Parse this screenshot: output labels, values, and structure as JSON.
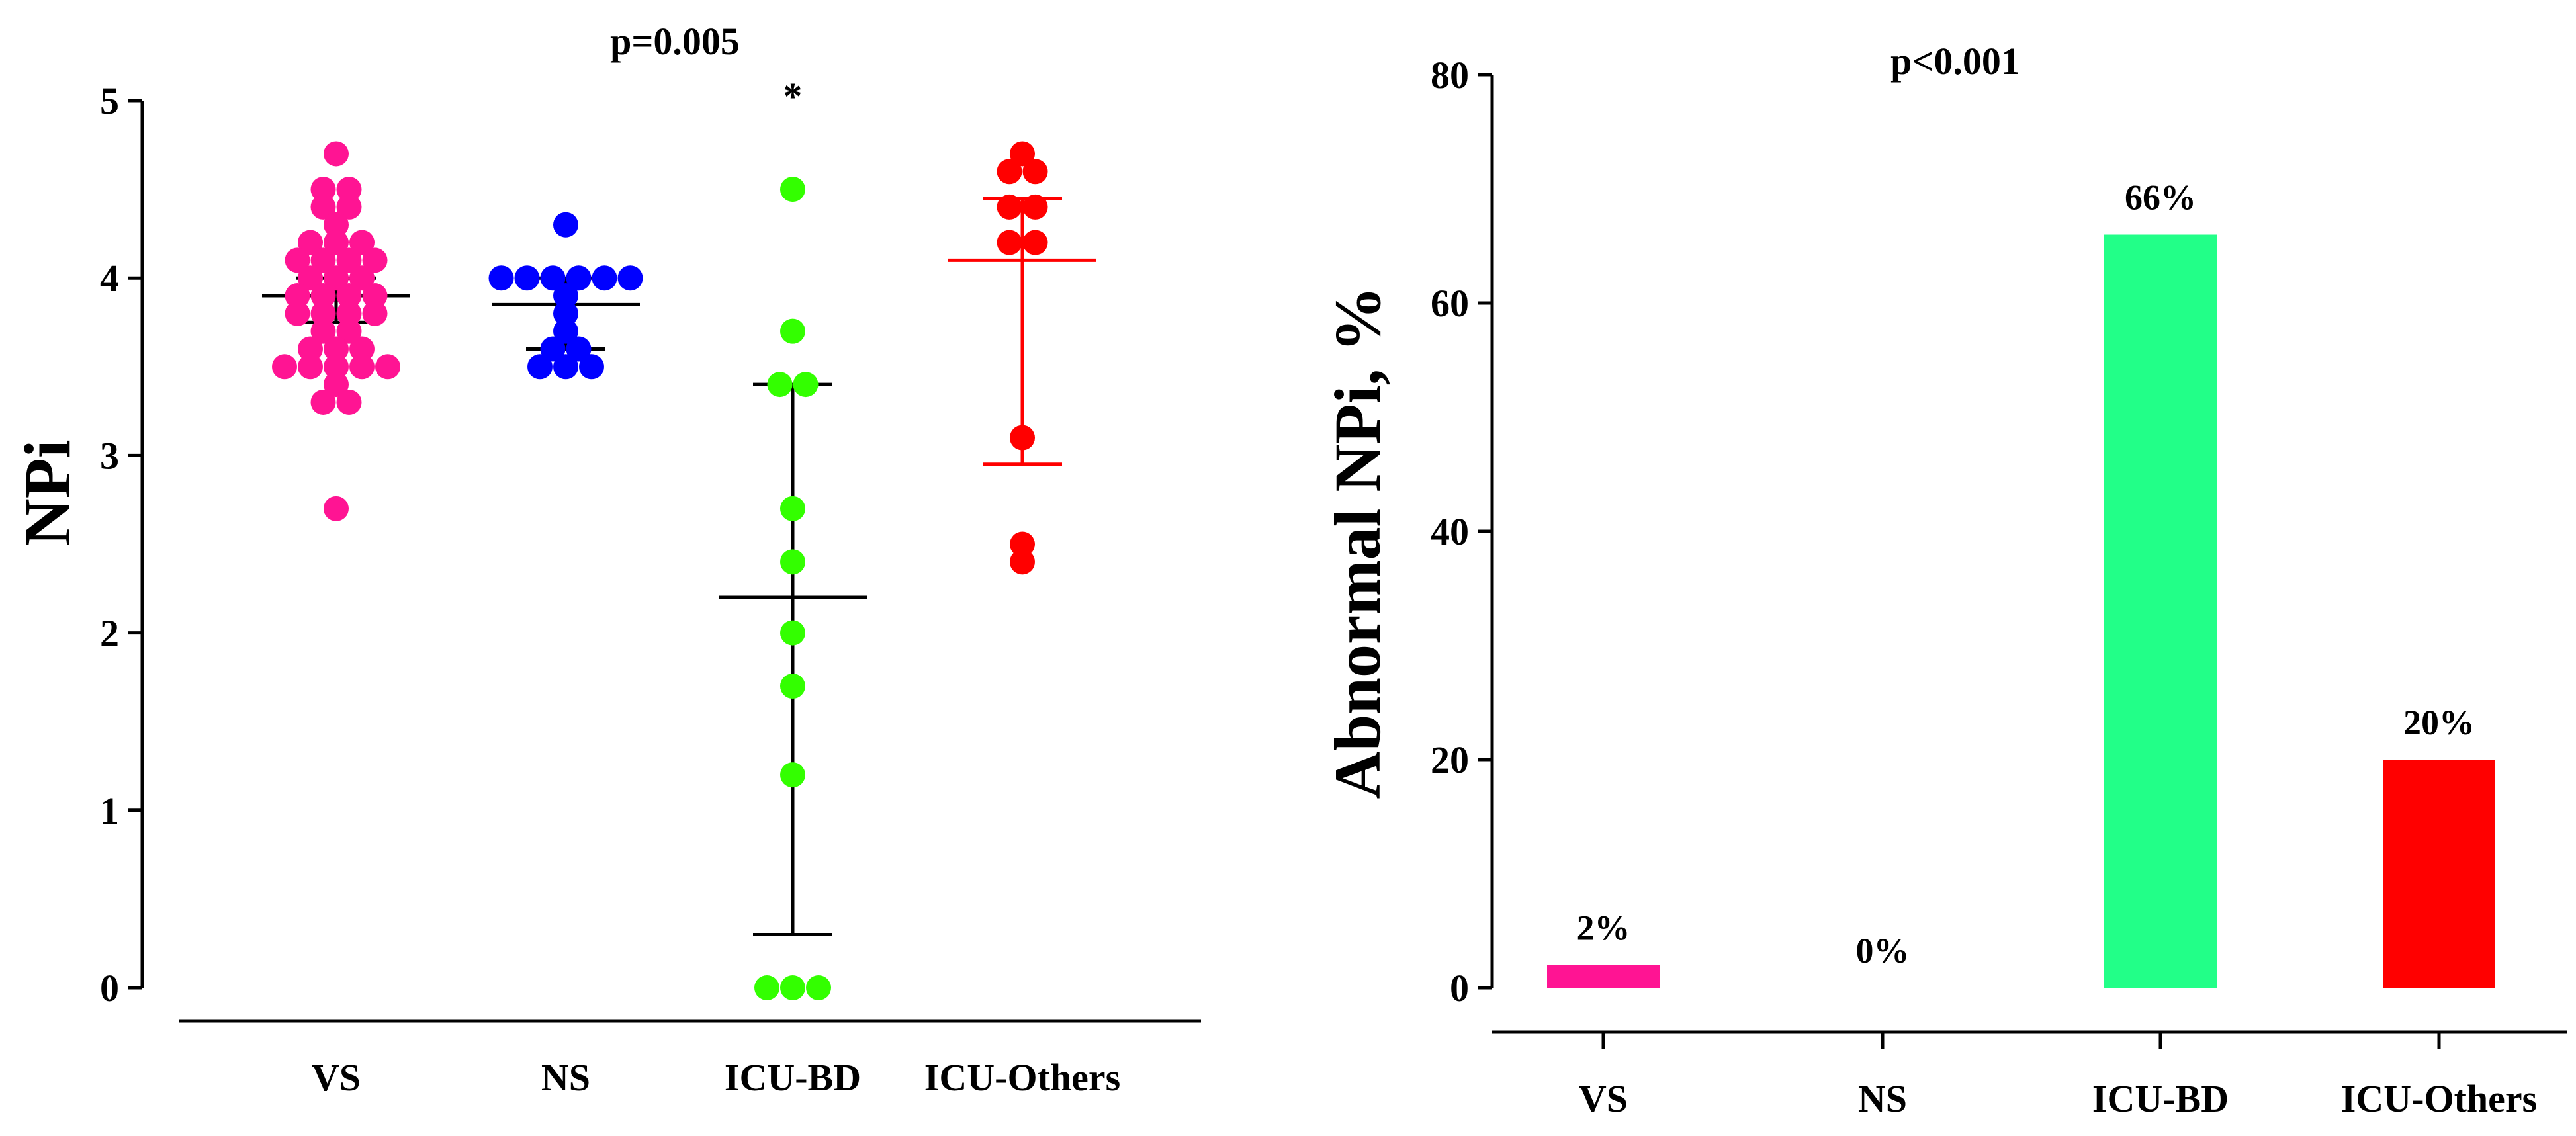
{
  "figure": {
    "background": "#ffffff",
    "axis_color": "#000000"
  },
  "chart_data": [
    {
      "type": "scatter",
      "subtype": "dot-plot with median and IQR",
      "title": "p=0.005",
      "xlabel": "",
      "ylabel": "NPi",
      "ylim": [
        0,
        5
      ],
      "yticks": [
        "0",
        "1",
        "2",
        "3",
        "4",
        "5"
      ],
      "categories": [
        "VS",
        "NS",
        "ICU-BD",
        "ICU-Others"
      ],
      "annotations": [
        {
          "text": "*",
          "category": "ICU-BD"
        }
      ],
      "groups": [
        {
          "name": "VS",
          "color": "#ff1493",
          "values": [
            4.7,
            4.5,
            4.5,
            4.4,
            4.4,
            4.3,
            4.2,
            4.2,
            4.2,
            4.1,
            4.1,
            4.1,
            4.1,
            4.0,
            4.0,
            4.0,
            3.9,
            3.9,
            3.9,
            3.9,
            3.8,
            3.8,
            3.8,
            3.8,
            3.7,
            3.7,
            3.6,
            3.6,
            3.6,
            3.5,
            3.5,
            3.5,
            3.5,
            3.5,
            3.4,
            3.3,
            3.3,
            2.7
          ],
          "median": 3.9,
          "q1": 3.75,
          "q3": 4.0
        },
        {
          "name": "NS",
          "color": "#0000ff",
          "values": [
            4.3,
            4.0,
            4.0,
            4.0,
            4.0,
            4.0,
            4.0,
            3.9,
            3.8,
            3.7,
            3.6,
            3.6,
            3.5,
            3.5,
            3.5
          ],
          "median": 3.85,
          "q1": 3.6,
          "q3": 4.0
        },
        {
          "name": "ICU-BD",
          "color": "#33ff00",
          "values": [
            4.5,
            3.7,
            3.4,
            3.4,
            2.7,
            2.4,
            2.0,
            1.7,
            1.2,
            0.0,
            0.0,
            0.0
          ],
          "median": 2.2,
          "q1": 0.3,
          "q3": 3.4
        },
        {
          "name": "ICU-Others",
          "color": "#ff0000",
          "values": [
            4.7,
            4.6,
            4.6,
            4.4,
            4.4,
            4.2,
            4.2,
            3.1,
            2.5,
            2.4
          ],
          "median": 4.1,
          "q1": 2.95,
          "q3": 4.45
        }
      ]
    },
    {
      "type": "bar",
      "title": "p<0.001",
      "xlabel": "",
      "ylabel": "Abnormal NPi, %",
      "ylim": [
        0,
        80
      ],
      "yticks": [
        "0",
        "20",
        "40",
        "60",
        "80"
      ],
      "categories": [
        "VS",
        "NS",
        "ICU-BD",
        "ICU-Others"
      ],
      "values": [
        2,
        0,
        66,
        20
      ],
      "value_labels": [
        "2%",
        "0%",
        "66%",
        "20%"
      ],
      "colors": [
        "#ff1493",
        "#ff1493",
        "#22ff88",
        "#ff0000"
      ]
    }
  ]
}
